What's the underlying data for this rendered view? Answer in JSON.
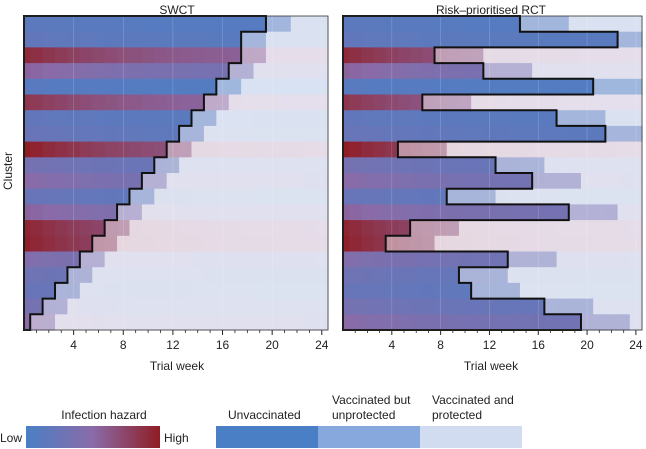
{
  "chart_data": [
    {
      "type": "heatmap",
      "title": "SWCT",
      "xlabel": "Trial week",
      "ylabel": "Cluster",
      "xlim": [
        0,
        24.5
      ],
      "x_ticks": [
        4,
        8,
        12,
        16,
        20,
        24
      ],
      "clusters": 20,
      "design": "stepped-wedge",
      "vaccination_week_by_cluster": [
        19.5,
        17.5,
        17.5,
        16.5,
        15.5,
        14.5,
        13.5,
        12.5,
        11.5,
        10.5,
        9.5,
        8.5,
        7.5,
        6.5,
        5.5,
        4.5,
        3.5,
        2.5,
        1.5,
        0.5
      ]
    },
    {
      "type": "heatmap",
      "title": "Risk–prioritised RCT",
      "xlabel": "Trial week",
      "xlim": [
        0,
        24.5
      ],
      "x_ticks": [
        4,
        8,
        12,
        16,
        20,
        24
      ],
      "clusters": 20,
      "design": "randomised within risk strata",
      "vaccination_week_by_cluster": [
        14.5,
        22.5,
        7.5,
        11.5,
        20.5,
        6.5,
        17.5,
        21.5,
        4.5,
        12.5,
        15.5,
        8.5,
        18.5,
        5.5,
        3.5,
        13.5,
        9.5,
        10.5,
        16.5,
        19.5
      ]
    }
  ],
  "legend": {
    "hazard": {
      "title": "Infection hazard",
      "low": "Low",
      "high": "High"
    },
    "status": [
      {
        "label": "Unvaccinated",
        "color": "#4a7fc6"
      },
      {
        "label": "Vaccinated but unprotected",
        "color": "#86a8dc"
      },
      {
        "label": "Vaccinated and protected",
        "color": "#d2dcf0"
      }
    ]
  },
  "colors": {
    "hazard_low": "#4a7fc6",
    "hazard_mid": "#8a6ba8",
    "hazard_high": "#8f1d24"
  }
}
